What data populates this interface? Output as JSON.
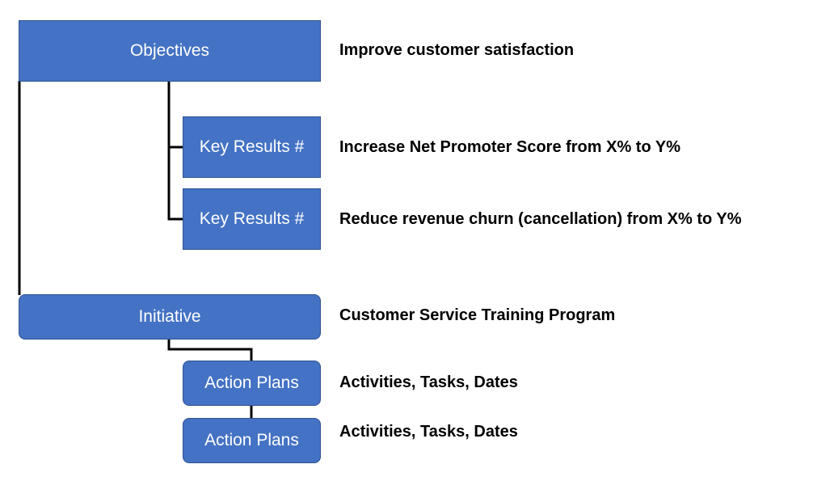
{
  "boxes": {
    "objectives": "Objectives",
    "key_result_1": "Key Results #",
    "key_result_2": "Key Results #",
    "initiative": "Initiative",
    "action_plan_1": "Action Plans",
    "action_plan_2": "Action Plans"
  },
  "descriptions": {
    "objective": "Improve customer satisfaction",
    "key_result_1": "Increase Net Promoter Score from X% to Y%",
    "key_result_2": "Reduce revenue churn (cancellation) from X% to Y%",
    "initiative": "Customer Service Training Program",
    "action_plan_1": "Activities, Tasks, Dates",
    "action_plan_2": "Activities, Tasks, Dates"
  },
  "colors": {
    "box_fill": "#4472c4",
    "box_border": "#2f528f",
    "box_text": "#ffffff",
    "connector": "#000000",
    "description_text": "#000000"
  }
}
